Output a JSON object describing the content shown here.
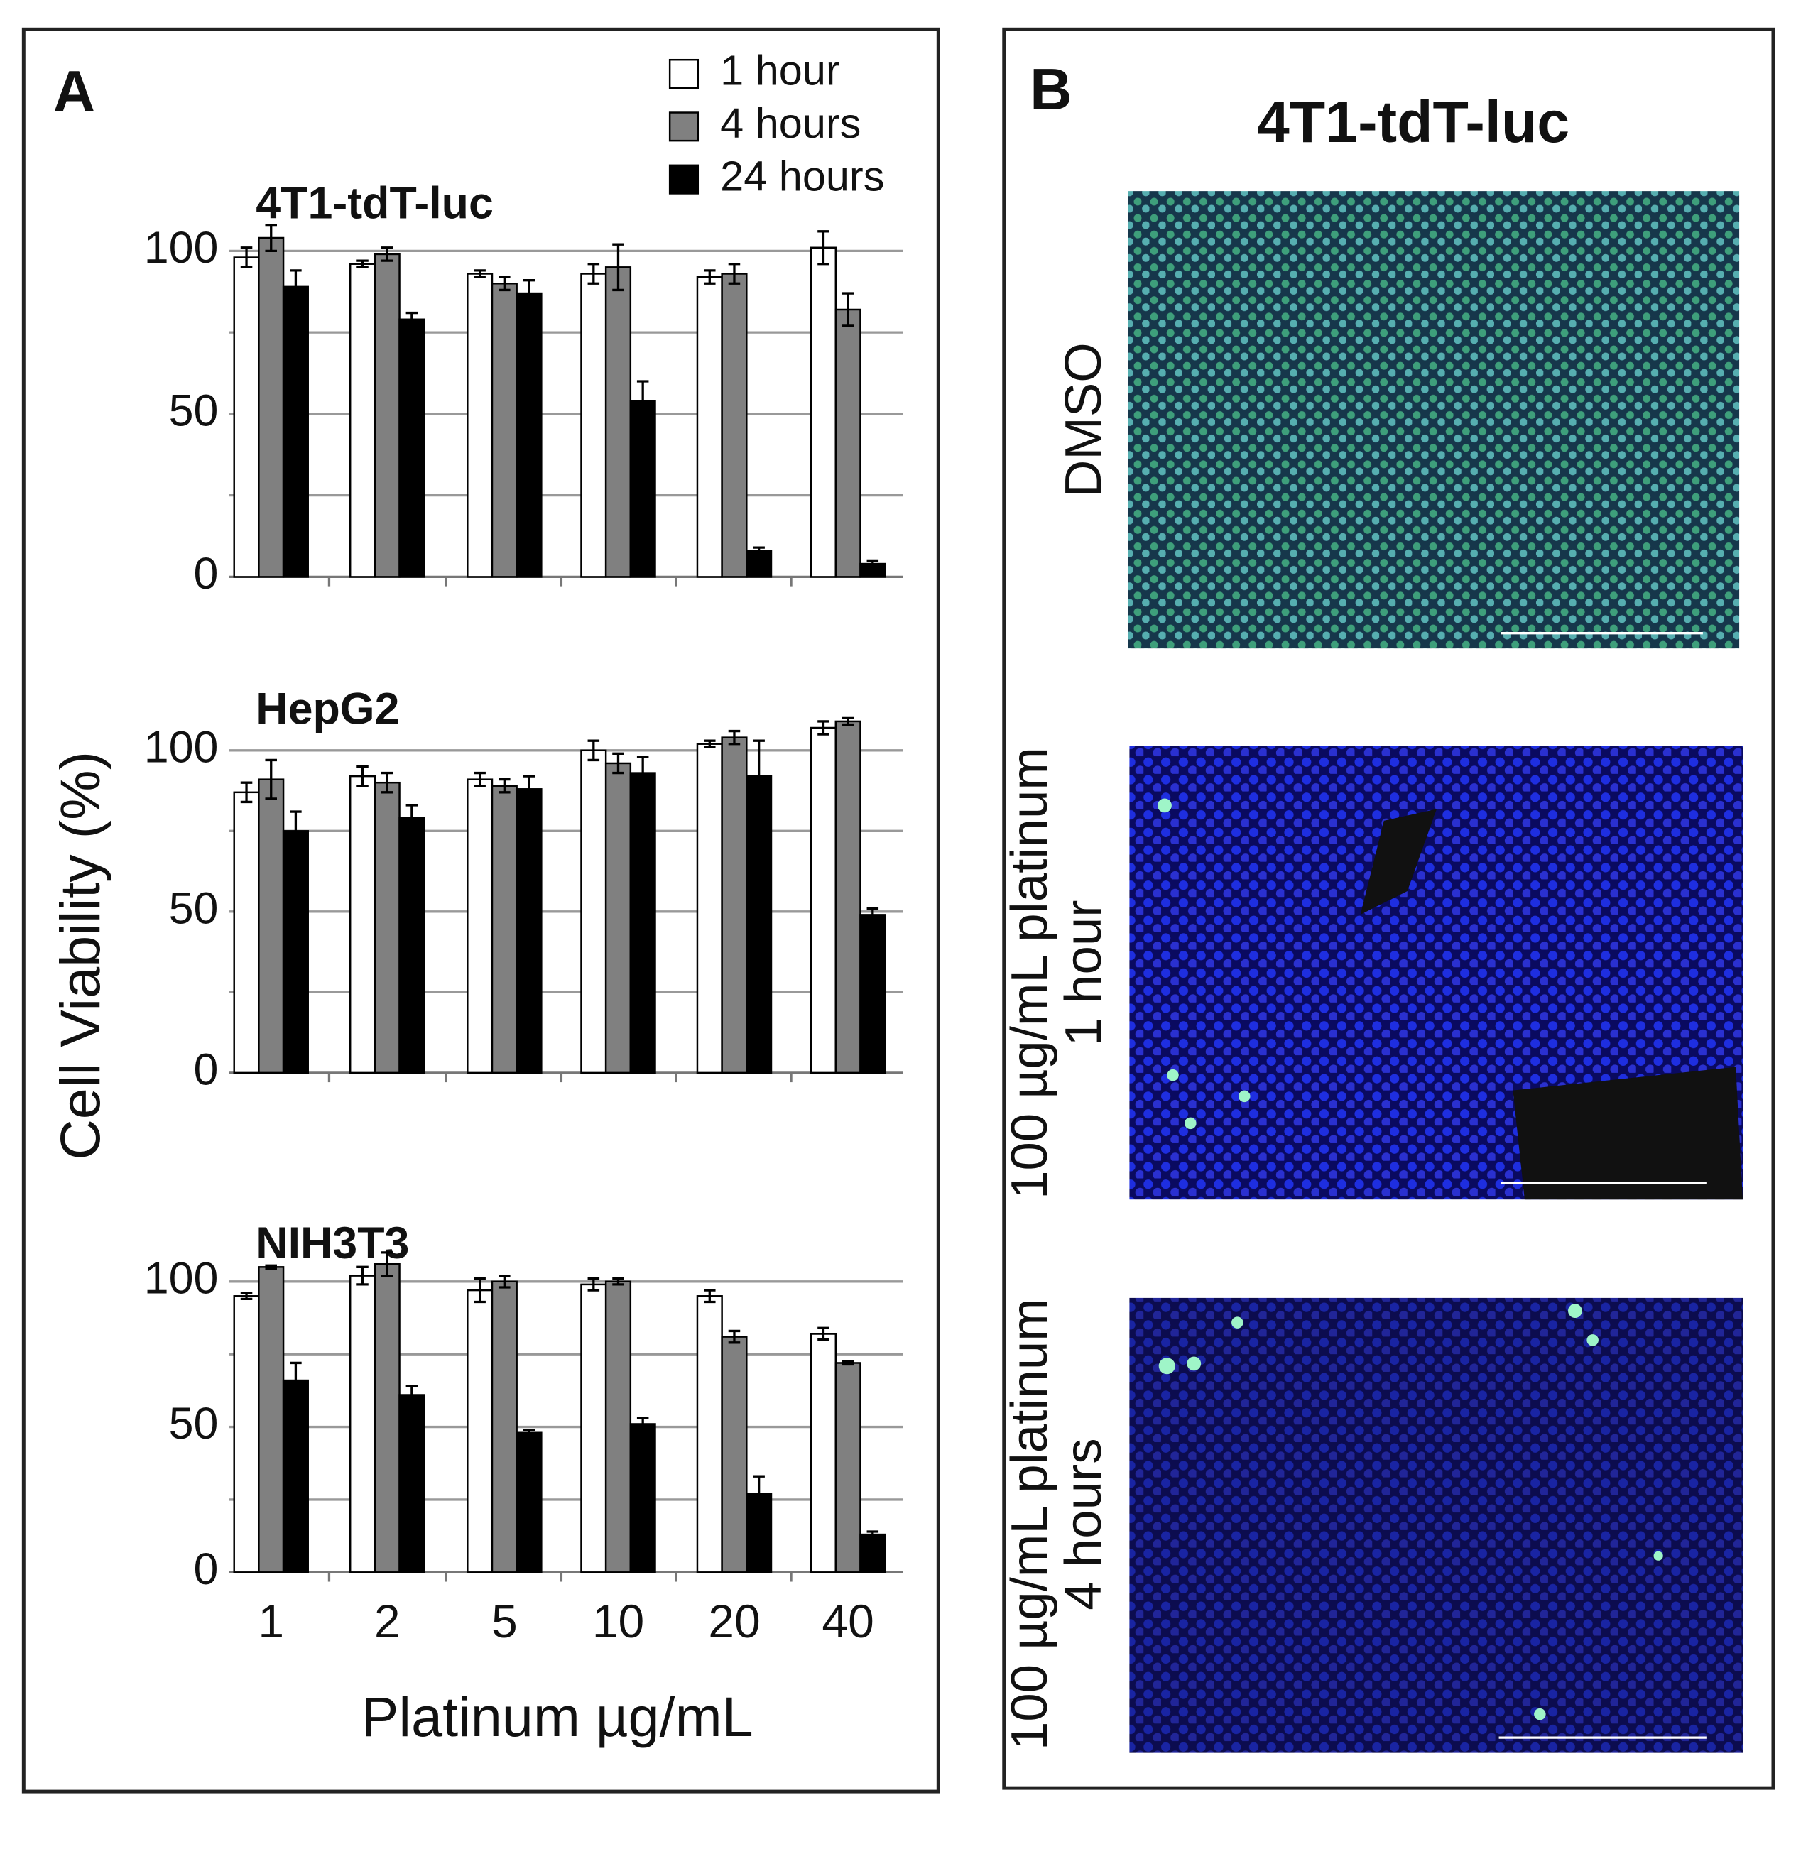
{
  "panel_a": {
    "label": "A",
    "y_label": "Cell Viability (%)",
    "x_label": "Platinum µg/mL"
  },
  "chart_data": [
    {
      "type": "bar",
      "title": "4T1-tdT-luc",
      "ylim": [
        0,
        110
      ],
      "yticks": [
        0,
        50,
        100
      ],
      "gridlines": [
        25,
        50,
        75,
        100
      ],
      "series": [
        {
          "name": "1 hour",
          "color": "#ffffff",
          "values": [
            98,
            96,
            93,
            93,
            92,
            101
          ],
          "errors": [
            3,
            1,
            1,
            3,
            2,
            5
          ]
        },
        {
          "name": "4 hours",
          "color": "#808080",
          "values": [
            104,
            99,
            90,
            95,
            93,
            82
          ],
          "errors": [
            4,
            2,
            2,
            7,
            3,
            5
          ]
        },
        {
          "name": "24 hours",
          "color": "#000000",
          "values": [
            89,
            79,
            87,
            54,
            8,
            4
          ],
          "errors": [
            5,
            2,
            4,
            6,
            1,
            1
          ]
        }
      ]
    },
    {
      "type": "bar",
      "title": "HepG2",
      "ylim": [
        0,
        110
      ],
      "yticks": [
        0,
        50,
        100
      ],
      "gridlines": [
        25,
        50,
        75,
        100
      ],
      "series": [
        {
          "values": [
            87,
            92,
            91,
            100,
            102,
            107
          ],
          "errors": [
            3,
            3,
            2,
            3,
            1,
            2
          ]
        },
        {
          "values": [
            91,
            90,
            89,
            96,
            104,
            109
          ],
          "errors": [
            6,
            3,
            2,
            3,
            2,
            1
          ]
        },
        {
          "values": [
            75,
            79,
            88,
            93,
            92,
            49
          ],
          "errors": [
            6,
            4,
            4,
            5,
            11,
            2
          ]
        }
      ]
    },
    {
      "type": "bar",
      "title": "NIH3T3",
      "ylim": [
        0,
        110
      ],
      "yticks": [
        0,
        50,
        100
      ],
      "gridlines": [
        25,
        50,
        75,
        100
      ],
      "categories": [
        "1",
        "2",
        "5",
        "10",
        "20",
        "40"
      ],
      "series": [
        {
          "values": [
            95,
            102,
            97,
            99,
            95,
            82
          ],
          "errors": [
            1,
            3,
            4,
            2,
            2,
            2
          ]
        },
        {
          "values": [
            105,
            106,
            100,
            100,
            81,
            72
          ],
          "errors": [
            0.5,
            4,
            2,
            1,
            2,
            0.5
          ]
        },
        {
          "values": [
            66,
            61,
            48,
            51,
            27,
            13
          ],
          "errors": [
            6,
            3,
            1,
            2,
            6,
            1
          ]
        }
      ]
    }
  ],
  "panel_b": {
    "label": "B",
    "title": "4T1-tdT-luc",
    "images": [
      {
        "lines": [
          "DMSO"
        ]
      },
      {
        "lines": [
          "100 µg/mL platinum",
          "1 hour"
        ]
      },
      {
        "lines": [
          "100 µg/mL platinum",
          "4 hours"
        ]
      }
    ]
  }
}
